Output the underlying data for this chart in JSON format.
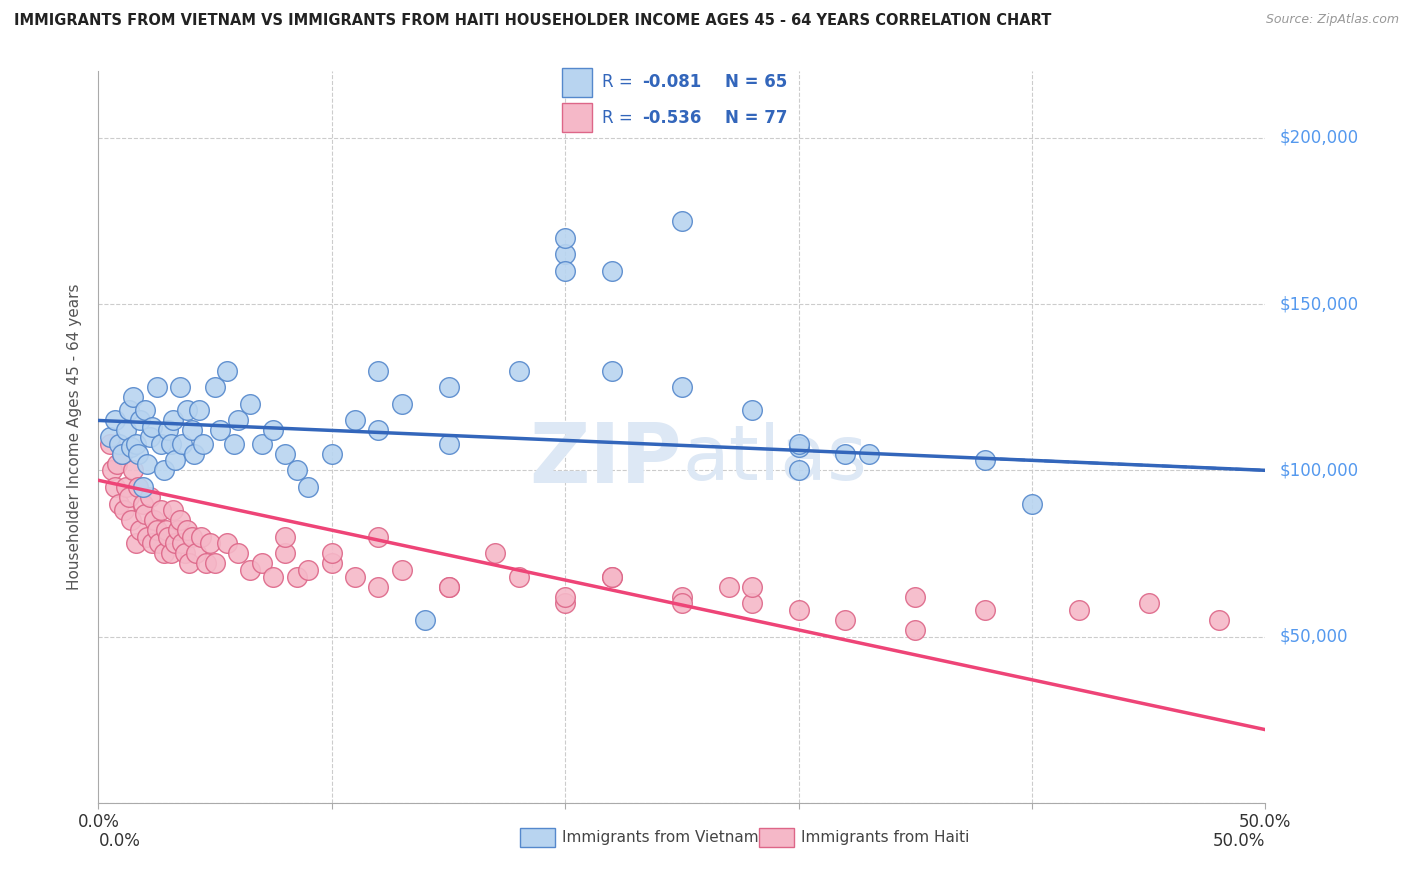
{
  "title": "IMMIGRANTS FROM VIETNAM VS IMMIGRANTS FROM HAITI HOUSEHOLDER INCOME AGES 45 - 64 YEARS CORRELATION CHART",
  "source": "Source: ZipAtlas.com",
  "ylabel": "Householder Income Ages 45 - 64 years",
  "r_vietnam": -0.081,
  "n_vietnam": 65,
  "r_haiti": -0.536,
  "n_haiti": 77,
  "color_vietnam_fill": "#b8d4f0",
  "color_vietnam_edge": "#5588cc",
  "color_vietnam_line": "#3366bb",
  "color_haiti_fill": "#f5b8c8",
  "color_haiti_edge": "#dd6688",
  "color_haiti_line": "#ee4477",
  "color_axis_right": "#5599ee",
  "color_legend_text": "#3366bb",
  "watermark_color": "#dde8f5",
  "xmin": 0.0,
  "xmax": 0.5,
  "ymin": 0,
  "ymax": 220000,
  "yticks": [
    0,
    50000,
    100000,
    150000,
    200000
  ],
  "ytick_labels_right": [
    "",
    "$50,000",
    "$100,000",
    "$150,000",
    "$200,000"
  ],
  "viet_line_x0": 0.0,
  "viet_line_x1": 0.5,
  "viet_line_y0": 115000,
  "viet_line_y1": 100000,
  "haiti_line_x0": 0.0,
  "haiti_line_x1": 0.5,
  "haiti_line_y0": 97000,
  "haiti_line_y1": 22000,
  "vietnam_x": [
    0.005,
    0.007,
    0.009,
    0.01,
    0.012,
    0.013,
    0.014,
    0.015,
    0.016,
    0.017,
    0.018,
    0.019,
    0.02,
    0.021,
    0.022,
    0.023,
    0.025,
    0.027,
    0.028,
    0.03,
    0.031,
    0.032,
    0.033,
    0.035,
    0.036,
    0.038,
    0.04,
    0.041,
    0.043,
    0.045,
    0.05,
    0.052,
    0.055,
    0.058,
    0.06,
    0.065,
    0.07,
    0.075,
    0.08,
    0.085,
    0.09,
    0.1,
    0.11,
    0.12,
    0.13,
    0.15,
    0.18,
    0.2,
    0.22,
    0.25,
    0.28,
    0.3,
    0.33,
    0.38,
    0.4,
    0.25,
    0.2,
    0.32,
    0.15,
    0.12,
    0.22,
    0.3,
    0.2,
    0.3,
    0.14
  ],
  "vietnam_y": [
    110000,
    115000,
    108000,
    105000,
    112000,
    118000,
    107000,
    122000,
    108000,
    105000,
    115000,
    95000,
    118000,
    102000,
    110000,
    113000,
    125000,
    108000,
    100000,
    112000,
    108000,
    115000,
    103000,
    125000,
    108000,
    118000,
    112000,
    105000,
    118000,
    108000,
    125000,
    112000,
    130000,
    108000,
    115000,
    120000,
    108000,
    112000,
    105000,
    100000,
    95000,
    105000,
    115000,
    112000,
    120000,
    108000,
    130000,
    165000,
    160000,
    175000,
    118000,
    107000,
    105000,
    103000,
    90000,
    125000,
    170000,
    105000,
    125000,
    130000,
    130000,
    108000,
    160000,
    100000,
    55000
  ],
  "haiti_x": [
    0.005,
    0.006,
    0.007,
    0.008,
    0.009,
    0.01,
    0.011,
    0.012,
    0.013,
    0.014,
    0.015,
    0.016,
    0.017,
    0.018,
    0.019,
    0.02,
    0.021,
    0.022,
    0.023,
    0.024,
    0.025,
    0.026,
    0.027,
    0.028,
    0.029,
    0.03,
    0.031,
    0.032,
    0.033,
    0.034,
    0.035,
    0.036,
    0.037,
    0.038,
    0.039,
    0.04,
    0.042,
    0.044,
    0.046,
    0.048,
    0.05,
    0.055,
    0.06,
    0.065,
    0.07,
    0.075,
    0.08,
    0.085,
    0.09,
    0.1,
    0.11,
    0.12,
    0.13,
    0.15,
    0.18,
    0.2,
    0.25,
    0.28,
    0.3,
    0.35,
    0.38,
    0.42,
    0.45,
    0.48,
    0.22,
    0.27,
    0.2,
    0.32,
    0.15,
    0.25,
    0.35,
    0.1,
    0.08,
    0.12,
    0.17,
    0.22,
    0.28
  ],
  "haiti_y": [
    108000,
    100000,
    95000,
    102000,
    90000,
    105000,
    88000,
    95000,
    92000,
    85000,
    100000,
    78000,
    95000,
    82000,
    90000,
    87000,
    80000,
    92000,
    78000,
    85000,
    82000,
    78000,
    88000,
    75000,
    82000,
    80000,
    75000,
    88000,
    78000,
    82000,
    85000,
    78000,
    75000,
    82000,
    72000,
    80000,
    75000,
    80000,
    72000,
    78000,
    72000,
    78000,
    75000,
    70000,
    72000,
    68000,
    75000,
    68000,
    70000,
    72000,
    68000,
    65000,
    70000,
    65000,
    68000,
    60000,
    62000,
    60000,
    58000,
    62000,
    58000,
    58000,
    60000,
    55000,
    68000,
    65000,
    62000,
    55000,
    65000,
    60000,
    52000,
    75000,
    80000,
    80000,
    75000,
    68000,
    65000
  ]
}
